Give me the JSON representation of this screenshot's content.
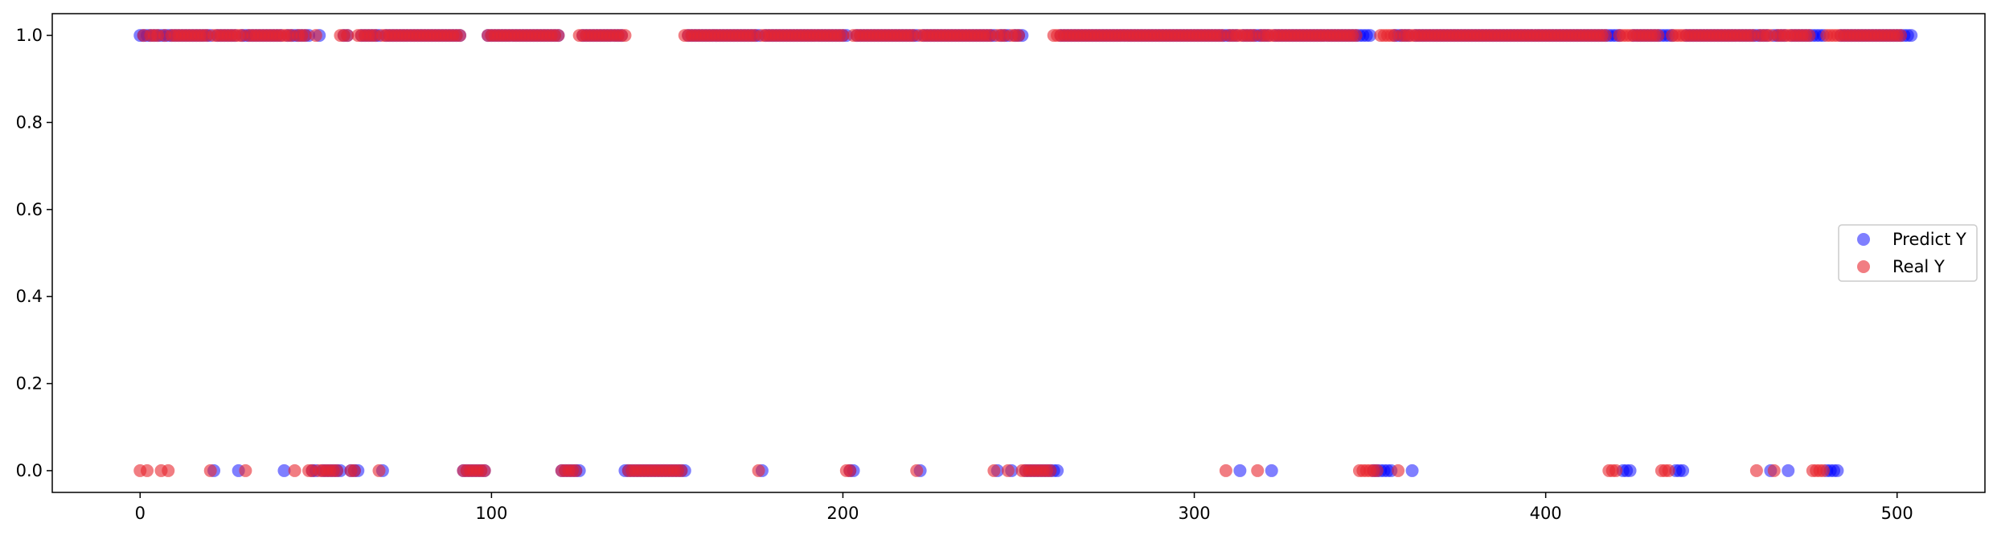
{
  "chart_data": {
    "type": "scatter",
    "title": "",
    "xlabel": "",
    "ylabel": "",
    "xlim": [
      -25,
      525
    ],
    "ylim": [
      -0.05,
      1.05
    ],
    "xticks": [
      0,
      100,
      200,
      300,
      400,
      500
    ],
    "yticks": [
      0.0,
      0.2,
      0.4,
      0.6,
      0.8,
      1.0
    ],
    "xtick_labels": [
      "0",
      "100",
      "200",
      "300",
      "400",
      "500"
    ],
    "ytick_labels": [
      "0.0",
      "0.2",
      "0.4",
      "0.6",
      "0.8",
      "1.0"
    ],
    "grid": false,
    "legend_placement": "center-right",
    "x": "integers 0 through 499",
    "series": [
      {
        "name": "Predict Y",
        "color": "#0000ff",
        "alpha": 0.5,
        "values": "1111111111111111111110111111011111111111101111111001000000110001111110111111111111111111111100000001111111111111111111110000001111111111110000000000000000001111111111111111111110111111111111111111111111001111111111111111110111111111111111111111011101110000000000111111111111111111111111111111111111111111111111111011111111011111111111111111111111111110000001111101111111111111111111111111111111111111111111111111111111111100011111111111100011111111111111111111111101111011111111110000111111111111111111111"
      },
      {
        "name": "Real Y",
        "color": "#e8262e",
        "alpha": 0.6,
        "values": "0101110101111111111101111111110111111111111101110010000001110011111101111111111111111111111100000001111111111111111111110000011111111111111000000000000000011111111111111111111101111111111111111111111110011111111111111111101111111111111111111110111011100000000011111111111111111111111111111111111111111111111110111111110111111111111111111111111111100000011111011111111111111111111111111111111111111111111111111111111111000111111111111000111111111111111111111111011110111111111100001111111111111111111111"
      }
    ]
  },
  "legend": {
    "items": [
      {
        "label": "Predict Y",
        "color": "#0000ff"
      },
      {
        "label": "Real Y",
        "color": "#e8262e"
      }
    ]
  }
}
